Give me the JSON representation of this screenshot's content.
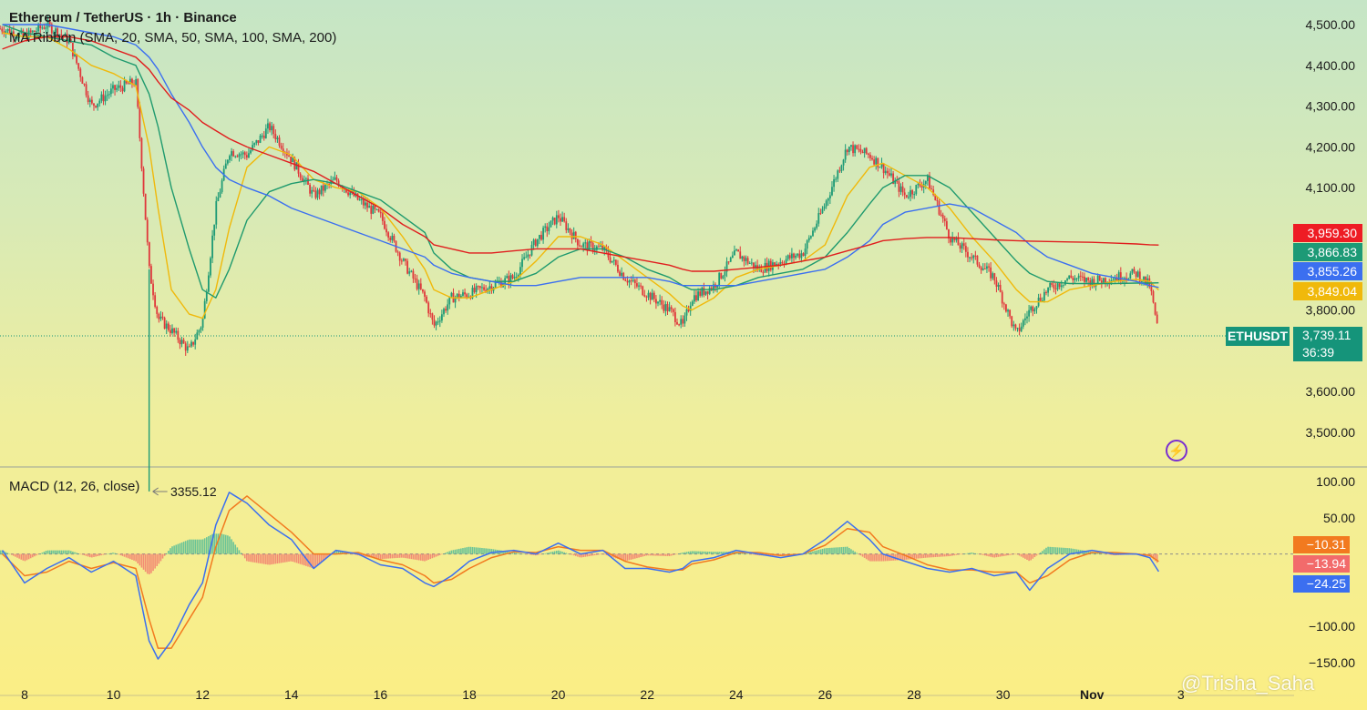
{
  "header": {
    "title": "Ethereum / TetherUS · 1h · Binance",
    "indicator": "MA Ribbon (SMA, 20, SMA, 50, SMA, 100, SMA, 200)",
    "macd_title": "MACD (12, 26, close)"
  },
  "colors": {
    "up": "#1d9a76",
    "down": "#e0373b",
    "sma20": "#f0b90b",
    "sma50": "#1f9a6e",
    "sma100": "#3b6ff0",
    "sma200": "#e01e1e",
    "macd": "#3b6ff0",
    "signal": "#f27a1f"
  },
  "price_tags": [
    {
      "label": "3,959.30",
      "value": 3959.3,
      "color": "#ee1c24"
    },
    {
      "label": "3,866.83",
      "value": 3866.83,
      "color": "#1d9a76"
    },
    {
      "label": "3,855.26",
      "value": 3855.26,
      "color": "#3b6ff0"
    },
    {
      "label": "3,849.04",
      "value": 3849.04,
      "color": "#f0b90b"
    }
  ],
  "last_price": {
    "symbol": "ETHUSDT",
    "price": "3,739.11",
    "countdown": "36:39"
  },
  "low_label": "3355.12",
  "macd_tags": [
    {
      "label": "−10.31",
      "color": "#f27a1f"
    },
    {
      "label": "−13.94",
      "color": "#f26b6b"
    },
    {
      "label": "−24.25",
      "color": "#3b6ff0"
    }
  ],
  "watermark": "@Trisha_Saha",
  "chart_data": [
    {
      "type": "line",
      "title": "Ethereum / TetherUS · 1h · Binance",
      "x_tick_labels": [
        "8",
        "10",
        "12",
        "14",
        "16",
        "18",
        "20",
        "22",
        "24",
        "26",
        "28",
        "30",
        "Nov",
        "3"
      ],
      "y_tick_labels": [
        "4,500.00",
        "4,400.00",
        "4,300.00",
        "4,200.00",
        "4,100.00",
        "3,800.00",
        "3,600.00",
        "3,500.00"
      ],
      "ylim": [
        3350,
        4540
      ],
      "x": [
        7.5,
        8,
        8.5,
        9,
        9.5,
        10,
        10.5,
        10.8,
        11,
        11.3,
        11.7,
        12,
        12.3,
        12.6,
        13,
        13.5,
        14,
        14.5,
        15,
        15.5,
        16,
        16.5,
        17,
        17.2,
        17.6,
        18,
        18.5,
        19,
        19.5,
        20,
        20.5,
        21,
        21.5,
        22,
        22.5,
        22.8,
        23,
        23.5,
        24,
        24.5,
        25,
        25.5,
        26,
        26.5,
        27,
        27.3,
        27.8,
        28.3,
        28.8,
        29.3,
        29.8,
        30.3,
        30.6,
        31,
        31.5,
        32,
        32.5,
        33,
        33.3,
        33.5
      ],
      "series": [
        {
          "name": "ETHUSDT",
          "values": [
            4490,
            4470,
            4500,
            4460,
            4300,
            4340,
            4360,
            3900,
            3780,
            3750,
            3700,
            3770,
            4050,
            4190,
            4180,
            4250,
            4170,
            4080,
            4120,
            4070,
            4030,
            3920,
            3830,
            3760,
            3830,
            3840,
            3860,
            3880,
            3970,
            4030,
            3960,
            3950,
            3880,
            3840,
            3800,
            3760,
            3830,
            3860,
            3940,
            3900,
            3920,
            3940,
            4060,
            4200,
            4180,
            4150,
            4080,
            4120,
            3980,
            3930,
            3880,
            3740,
            3800,
            3850,
            3880,
            3870,
            3880,
            3890,
            3860,
            3739.11
          ]
        },
        {
          "name": "SMA 20",
          "values": [
            4480,
            4470,
            4470,
            4440,
            4400,
            4380,
            4350,
            4200,
            4050,
            3850,
            3790,
            3780,
            3850,
            4000,
            4150,
            4200,
            4180,
            4120,
            4100,
            4090,
            4050,
            3980,
            3900,
            3850,
            3830,
            3830,
            3850,
            3870,
            3920,
            3980,
            3980,
            3960,
            3920,
            3880,
            3840,
            3810,
            3800,
            3830,
            3880,
            3900,
            3910,
            3920,
            3960,
            4080,
            4150,
            4160,
            4130,
            4100,
            4050,
            3980,
            3920,
            3850,
            3820,
            3820,
            3850,
            3860,
            3870,
            3875,
            3870,
            3849.04
          ]
        },
        {
          "name": "SMA 50",
          "values": [
            4500,
            4480,
            4470,
            4460,
            4450,
            4420,
            4400,
            4330,
            4250,
            4100,
            3950,
            3850,
            3830,
            3900,
            4020,
            4090,
            4110,
            4120,
            4110,
            4090,
            4070,
            4030,
            3990,
            3940,
            3900,
            3880,
            3870,
            3870,
            3890,
            3930,
            3950,
            3950,
            3930,
            3900,
            3880,
            3860,
            3850,
            3850,
            3860,
            3880,
            3890,
            3900,
            3930,
            3990,
            4060,
            4100,
            4130,
            4130,
            4100,
            4040,
            3980,
            3920,
            3890,
            3870,
            3865,
            3865,
            3865,
            3866,
            3866,
            3866.83
          ]
        },
        {
          "name": "SMA 100",
          "values": [
            4500,
            4500,
            4500,
            4490,
            4480,
            4470,
            4450,
            4420,
            4390,
            4330,
            4260,
            4200,
            4150,
            4120,
            4100,
            4080,
            4050,
            4030,
            4010,
            3990,
            3970,
            3950,
            3930,
            3910,
            3890,
            3880,
            3870,
            3860,
            3860,
            3870,
            3880,
            3880,
            3880,
            3880,
            3870,
            3860,
            3860,
            3860,
            3860,
            3870,
            3880,
            3890,
            3900,
            3930,
            3970,
            4010,
            4040,
            4050,
            4060,
            4050,
            4020,
            3990,
            3960,
            3930,
            3910,
            3890,
            3880,
            3870,
            3860,
            3855.26
          ]
        },
        {
          "name": "SMA 200",
          "values": [
            4440,
            4460,
            4470,
            4470,
            4460,
            4440,
            4420,
            4390,
            4360,
            4320,
            4290,
            4260,
            4240,
            4220,
            4200,
            4180,
            4160,
            4140,
            4110,
            4080,
            4050,
            4010,
            3980,
            3960,
            3950,
            3940,
            3940,
            3945,
            3950,
            3950,
            3950,
            3940,
            3930,
            3920,
            3910,
            3900,
            3895,
            3895,
            3900,
            3905,
            3910,
            3920,
            3930,
            3945,
            3960,
            3970,
            3975,
            3978,
            3978,
            3975,
            3972,
            3970,
            3969,
            3968,
            3967,
            3966,
            3964,
            3962,
            3960,
            3959.3
          ]
        }
      ],
      "annotations": [
        {
          "text": "3355.12",
          "x": 10.8,
          "y": 3355.12
        }
      ]
    },
    {
      "type": "line",
      "title": "MACD (12, 26, close)",
      "y_tick_labels": [
        "100.00",
        "50.00",
        "−100.00",
        "−150.00"
      ],
      "ylim": [
        -165,
        112
      ],
      "x": [
        7.5,
        8,
        8.5,
        9,
        9.5,
        10,
        10.5,
        10.8,
        11,
        11.3,
        11.7,
        12,
        12.3,
        12.6,
        13,
        13.5,
        14,
        14.5,
        15,
        15.5,
        16,
        16.5,
        17,
        17.2,
        17.6,
        18,
        18.5,
        19,
        19.5,
        20,
        20.5,
        21,
        21.5,
        22,
        22.5,
        22.8,
        23,
        23.5,
        24,
        24.5,
        25,
        25.5,
        26,
        26.5,
        27,
        27.3,
        27.8,
        28.3,
        28.8,
        29.3,
        29.8,
        30.3,
        30.6,
        31,
        31.5,
        32,
        32.5,
        33,
        33.3,
        33.5
      ],
      "series": [
        {
          "name": "MACD",
          "values": [
            5,
            -40,
            -20,
            -5,
            -25,
            -10,
            -30,
            -120,
            -145,
            -120,
            -70,
            -40,
            40,
            85,
            70,
            40,
            20,
            -20,
            5,
            0,
            -15,
            -20,
            -40,
            -45,
            -30,
            -10,
            2,
            5,
            0,
            15,
            0,
            5,
            -20,
            -20,
            -25,
            -20,
            -10,
            -5,
            5,
            0,
            -5,
            0,
            20,
            45,
            20,
            0,
            -10,
            -20,
            -25,
            -20,
            -30,
            -25,
            -50,
            -20,
            0,
            5,
            0,
            0,
            -5,
            -24.25
          ]
        },
        {
          "name": "Signal",
          "values": [
            0,
            -30,
            -25,
            -10,
            -20,
            -12,
            -20,
            -90,
            -130,
            -130,
            -90,
            -60,
            10,
            60,
            80,
            55,
            30,
            0,
            0,
            2,
            -8,
            -15,
            -30,
            -40,
            -35,
            -20,
            -5,
            3,
            2,
            10,
            5,
            5,
            -10,
            -18,
            -22,
            -22,
            -14,
            -8,
            2,
            2,
            -2,
            0,
            12,
            35,
            30,
            10,
            -2,
            -15,
            -22,
            -22,
            -25,
            -25,
            -40,
            -30,
            -8,
            2,
            2,
            0,
            -2,
            -10.31
          ]
        }
      ]
    }
  ]
}
